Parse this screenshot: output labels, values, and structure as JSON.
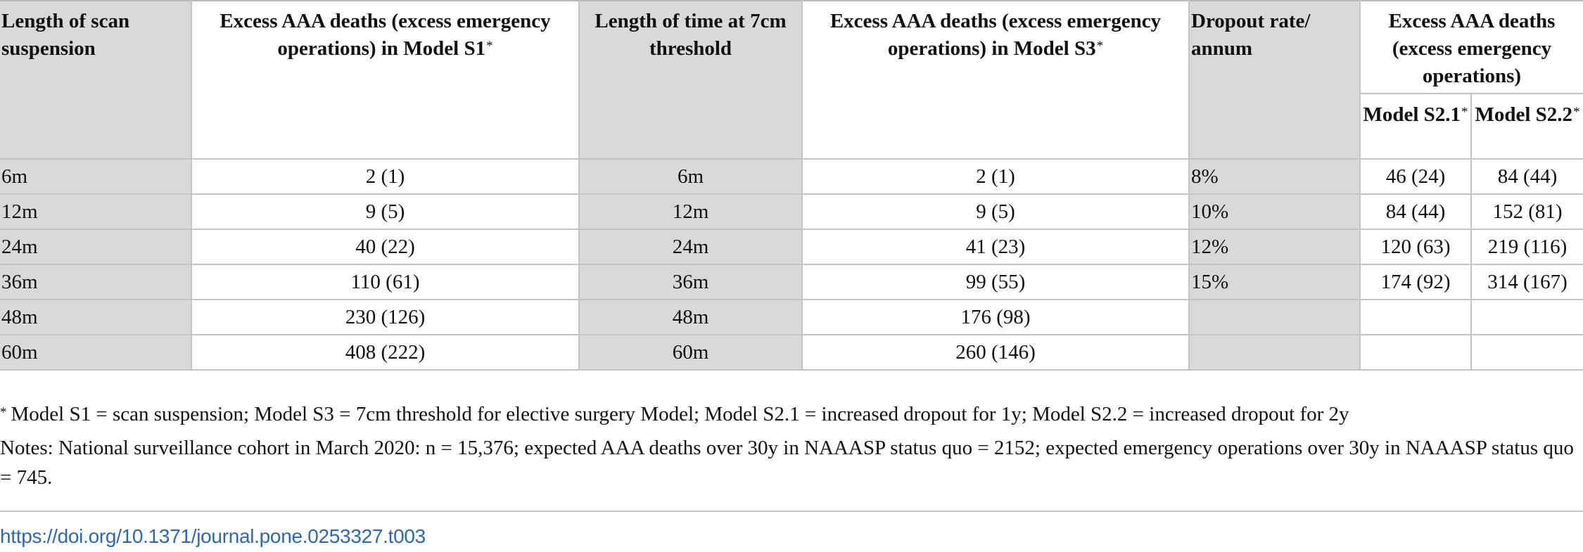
{
  "table": {
    "headers": {
      "col1": "Length of scan suspension",
      "col2": "Excess AAA deaths (excess emergency operations) in Model S1",
      "col3": "Length of time at 7cm threshold",
      "col4": "Excess AAA deaths (excess emergency operations) in Model S3",
      "col5": "Dropout rate/ annum",
      "col6_group": "Excess AAA deaths (excess emergency operations)",
      "col6": "Model S2.1",
      "col7": "Model S2.2",
      "star": "*"
    },
    "rows": [
      {
        "suspension": "6m",
        "s1": "2 (1)",
        "threshold_time": "6m",
        "s3": "2 (1)",
        "dropout": "8%",
        "s21": "46 (24)",
        "s22": "84 (44)"
      },
      {
        "suspension": "12m",
        "s1": "9 (5)",
        "threshold_time": "12m",
        "s3": "9 (5)",
        "dropout": "10%",
        "s21": "84 (44)",
        "s22": "152 (81)"
      },
      {
        "suspension": "24m",
        "s1": "40 (22)",
        "threshold_time": "24m",
        "s3": "41 (23)",
        "dropout": "12%",
        "s21": "120 (63)",
        "s22": "219 (116)"
      },
      {
        "suspension": "36m",
        "s1": "110 (61)",
        "threshold_time": "36m",
        "s3": "99 (55)",
        "dropout": "15%",
        "s21": "174 (92)",
        "s22": "314 (167)"
      },
      {
        "suspension": "48m",
        "s1": "230 (126)",
        "threshold_time": "48m",
        "s3": "176 (98)",
        "dropout": "",
        "s21": "",
        "s22": ""
      },
      {
        "suspension": "60m",
        "s1": "408 (222)",
        "threshold_time": "60m",
        "s3": "260 (146)",
        "dropout": "",
        "s21": "",
        "s22": ""
      }
    ]
  },
  "footnote": {
    "marker": "*",
    "text": "Model S1 = scan suspension; Model S3 = 7cm threshold for elective surgery Model; Model S2.1 = increased dropout for 1y; Model S2.2 = increased dropout for 2y"
  },
  "notes": "Notes: National surveillance cohort in March 2020: n = 15,376; expected AAA deaths over 30y in NAAASP status quo = 2152; expected emergency operations over 30y in NAAASP status quo = 745.",
  "doi": "https://doi.org/10.1371/journal.pone.0253327.t003"
}
